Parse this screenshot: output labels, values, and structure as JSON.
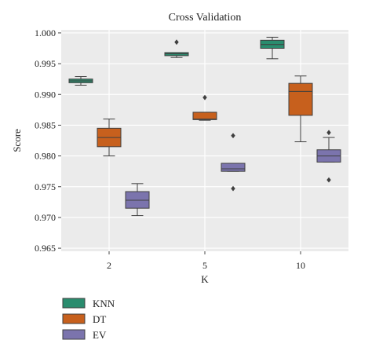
{
  "chart_data": {
    "type": "box",
    "title": "Cross Validation",
    "xlabel": "K",
    "ylabel": "Score",
    "categories": [
      "2",
      "5",
      "10"
    ],
    "ylim": [
      0.9645,
      1.0005
    ],
    "yticks": [
      "0.965",
      "0.970",
      "0.975",
      "0.980",
      "0.985",
      "0.990",
      "0.995",
      "1.000"
    ],
    "grid": true,
    "legend": "bottom-left",
    "series": [
      {
        "name": "KNN",
        "color": "#2a8c6e",
        "boxes": [
          {
            "whislo": 0.9915,
            "q1": 0.9919,
            "med": 0.9922,
            "q3": 0.9925,
            "whishi": 0.9929,
            "fliers": []
          },
          {
            "whislo": 0.996,
            "q1": 0.9963,
            "med": 0.9966,
            "q3": 0.9968,
            "whishi": 0.9968,
            "fliers": [
              0.9985
            ]
          },
          {
            "whislo": 0.9958,
            "q1": 0.9975,
            "med": 0.9981,
            "q3": 0.9988,
            "whishi": 0.9993,
            "fliers": []
          }
        ]
      },
      {
        "name": "DT",
        "color": "#c7601d",
        "boxes": [
          {
            "whislo": 0.98,
            "q1": 0.9815,
            "med": 0.983,
            "q3": 0.9845,
            "whishi": 0.986,
            "fliers": []
          },
          {
            "whislo": 0.9858,
            "q1": 0.9859,
            "med": 0.986,
            "q3": 0.9871,
            "whishi": 0.9871,
            "fliers": [
              0.9895
            ]
          },
          {
            "whislo": 0.9823,
            "q1": 0.9866,
            "med": 0.9905,
            "q3": 0.9918,
            "whishi": 0.993,
            "fliers": []
          }
        ]
      },
      {
        "name": "EV",
        "color": "#7b74ad",
        "boxes": [
          {
            "whislo": 0.9703,
            "q1": 0.9715,
            "med": 0.9728,
            "q3": 0.9742,
            "whishi": 0.9755,
            "fliers": []
          },
          {
            "whislo": 0.9775,
            "q1": 0.9775,
            "med": 0.9779,
            "q3": 0.9788,
            "whishi": 0.9788,
            "fliers": [
              0.9833,
              0.9747
            ]
          },
          {
            "whislo": 0.979,
            "q1": 0.979,
            "med": 0.98,
            "q3": 0.981,
            "whishi": 0.983,
            "fliers": [
              0.9838,
              0.9761
            ]
          }
        ]
      }
    ]
  }
}
